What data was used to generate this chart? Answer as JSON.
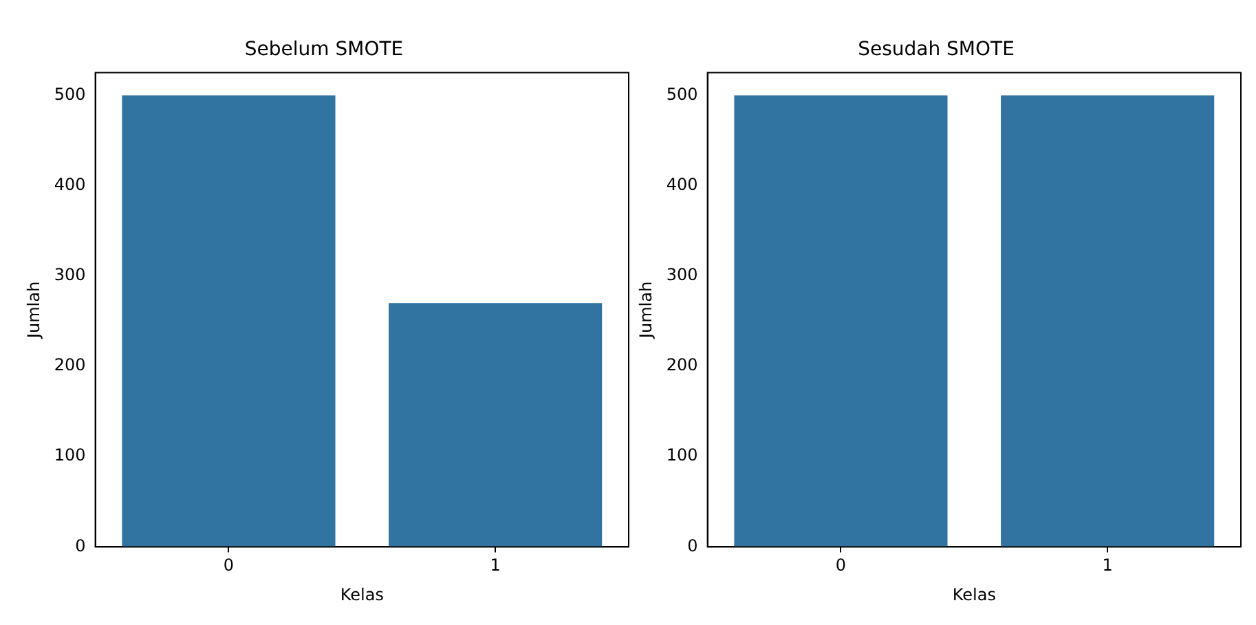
{
  "chart_data": [
    {
      "type": "bar",
      "title": "Sebelum SMOTE",
      "xlabel": "Kelas",
      "ylabel": "Jumlah",
      "categories": [
        "0",
        "1"
      ],
      "values": [
        500,
        270
      ],
      "color": "#3274a1",
      "ylim": [
        0,
        525
      ],
      "yticks": [
        0,
        100,
        200,
        300,
        400,
        500
      ],
      "grid": false,
      "legend": false
    },
    {
      "type": "bar",
      "title": "Sesudah SMOTE",
      "xlabel": "Kelas",
      "ylabel": "Jumlah",
      "categories": [
        "0",
        "1"
      ],
      "values": [
        500,
        500
      ],
      "color": "#3274a1",
      "ylim": [
        0,
        525
      ],
      "yticks": [
        0,
        100,
        200,
        300,
        400,
        500
      ],
      "grid": false,
      "legend": false
    }
  ]
}
